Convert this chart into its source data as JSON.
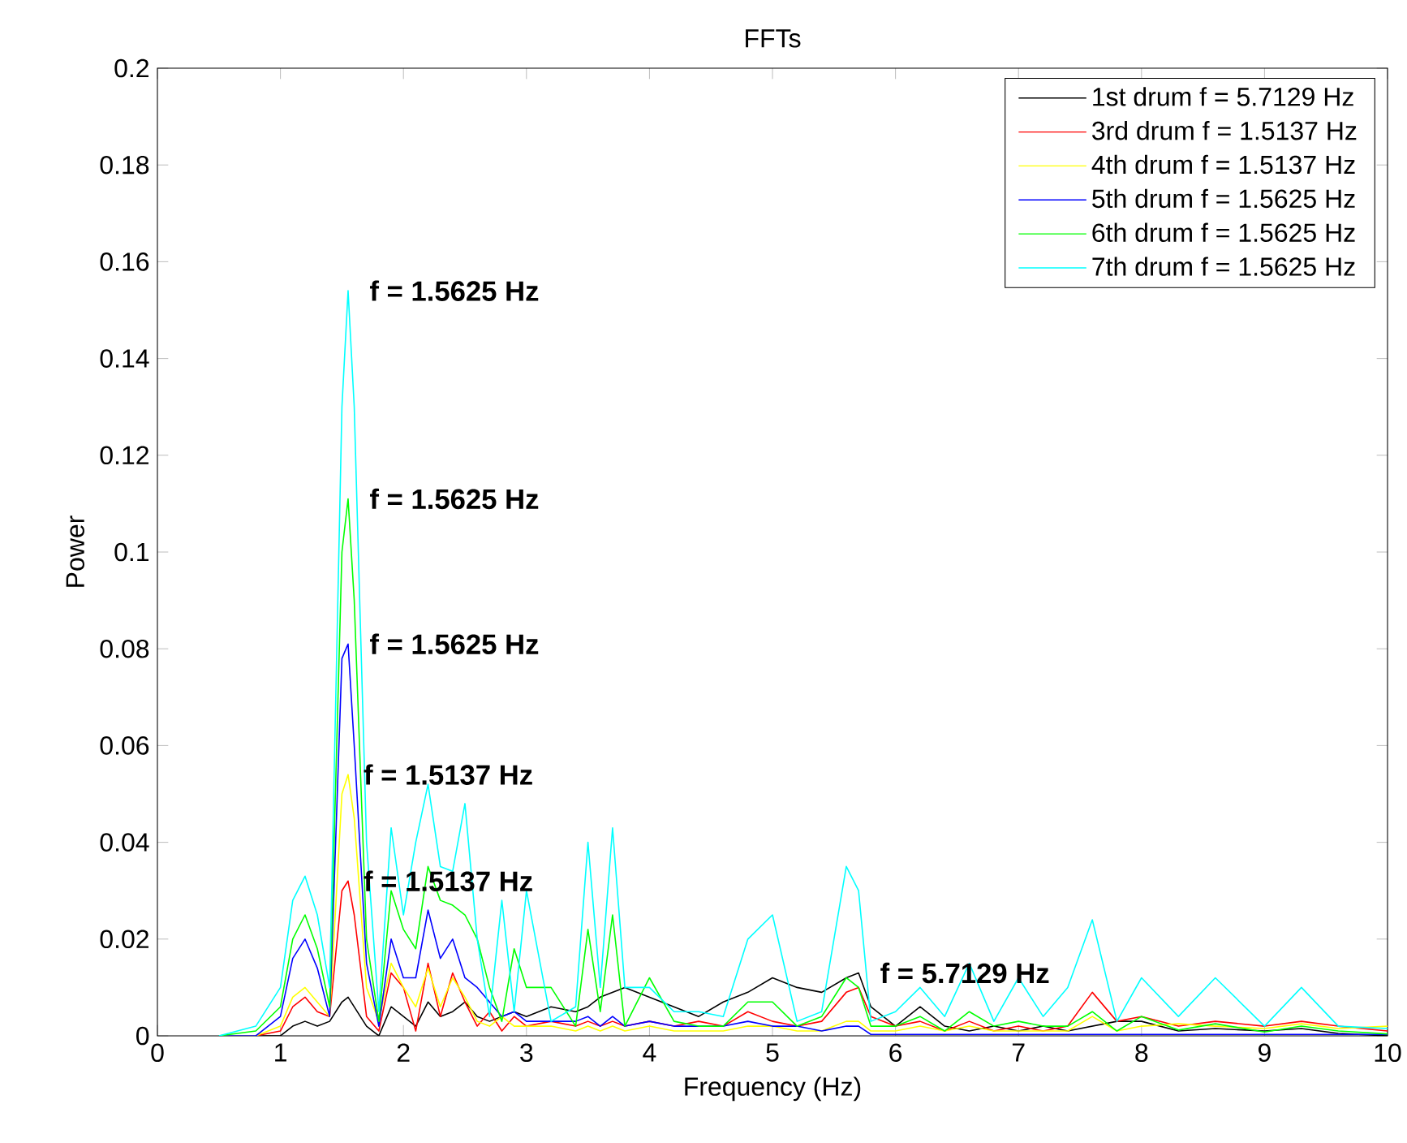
{
  "chart_data": {
    "type": "line",
    "title": "FFTs",
    "xlabel": "Frequency (Hz)",
    "ylabel": "Power",
    "xlim": [
      0,
      10
    ],
    "ylim": [
      0,
      0.2
    ],
    "xticks": [
      0,
      1,
      2,
      3,
      4,
      5,
      6,
      7,
      8,
      9,
      10
    ],
    "yticks": [
      0,
      0.02,
      0.04,
      0.06,
      0.08,
      0.1,
      0.12,
      0.14,
      0.16,
      0.18,
      0.2
    ],
    "grid": false,
    "legend": "top right",
    "marker": "none",
    "line_style": "solid",
    "x": [
      0.5,
      0.8,
      1.0,
      1.1,
      1.2,
      1.3,
      1.4,
      1.5,
      1.55,
      1.6,
      1.7,
      1.8,
      1.9,
      2.0,
      2.1,
      2.2,
      2.3,
      2.4,
      2.5,
      2.6,
      2.7,
      2.8,
      2.9,
      3.0,
      3.2,
      3.4,
      3.5,
      3.6,
      3.7,
      3.8,
      4.0,
      4.2,
      4.4,
      4.6,
      4.8,
      5.0,
      5.2,
      5.4,
      5.6,
      5.7,
      5.8,
      6.0,
      6.2,
      6.4,
      6.6,
      6.8,
      7.0,
      7.2,
      7.4,
      7.6,
      7.8,
      8.0,
      8.3,
      8.6,
      9.0,
      9.3,
      9.6,
      10
    ],
    "series": [
      {
        "name": "1st drum f = 5.7129 Hz",
        "color": "#000000",
        "values": [
          0,
          0,
          0,
          0.002,
          0.003,
          0.002,
          0.003,
          0.007,
          0.008,
          0.006,
          0.002,
          0,
          0.006,
          0.004,
          0.002,
          0.007,
          0.004,
          0.005,
          0.007,
          0.004,
          0.003,
          0.004,
          0.005,
          0.004,
          0.006,
          0.005,
          0.006,
          0.008,
          0.009,
          0.01,
          0.008,
          0.006,
          0.004,
          0.007,
          0.009,
          0.012,
          0.01,
          0.009,
          0.012,
          0.013,
          0.006,
          0.002,
          0.006,
          0.002,
          0.001,
          0.002,
          0.001,
          0.002,
          0.001,
          0.002,
          0.003,
          0.003,
          0.001,
          0.0015,
          0.001,
          0.0015,
          0.0005,
          0
        ]
      },
      {
        "name": "3rd drum f = 1.5137 Hz",
        "color": "#ff0000",
        "values": [
          0,
          0,
          0.001,
          0.006,
          0.008,
          0.005,
          0.004,
          0.03,
          0.032,
          0.025,
          0.004,
          0.001,
          0.013,
          0.01,
          0.001,
          0.015,
          0.004,
          0.013,
          0.007,
          0.002,
          0.005,
          0.001,
          0.004,
          0.002,
          0.003,
          0.002,
          0.003,
          0.002,
          0.003,
          0.002,
          0.003,
          0.002,
          0.003,
          0.002,
          0.005,
          0.003,
          0.002,
          0.003,
          0.009,
          0.01,
          0.004,
          0.002,
          0.003,
          0.001,
          0.003,
          0.001,
          0.002,
          0.001,
          0.002,
          0.009,
          0.003,
          0.004,
          0.002,
          0.003,
          0.002,
          0.003,
          0.002,
          0.001
        ]
      },
      {
        "name": "4th drum f = 1.5137 Hz",
        "color": "#ffff00",
        "values": [
          0,
          0,
          0.002,
          0.008,
          0.01,
          0.007,
          0.004,
          0.05,
          0.054,
          0.045,
          0.01,
          0.003,
          0.015,
          0.01,
          0.006,
          0.014,
          0.006,
          0.012,
          0.008,
          0.003,
          0.002,
          0.004,
          0.002,
          0.002,
          0.002,
          0.001,
          0.002,
          0.001,
          0.002,
          0.001,
          0.002,
          0.001,
          0.001,
          0.001,
          0.002,
          0.002,
          0.001,
          0.001,
          0.003,
          0.003,
          0.001,
          0.001,
          0.002,
          0.001,
          0.002,
          0.001,
          0.001,
          0.001,
          0.001,
          0.004,
          0.001,
          0.002,
          0.0025,
          0.002,
          0.0015,
          0.0025,
          0.0015,
          0.002
        ]
      },
      {
        "name": "5th drum f = 1.5625 Hz",
        "color": "#0000ff",
        "values": [
          0,
          0,
          0.004,
          0.016,
          0.02,
          0.014,
          0.004,
          0.078,
          0.081,
          0.06,
          0.015,
          0.002,
          0.02,
          0.012,
          0.012,
          0.026,
          0.016,
          0.02,
          0.012,
          0.01,
          0.007,
          0.004,
          0.005,
          0.003,
          0.003,
          0.003,
          0.004,
          0.002,
          0.004,
          0.002,
          0.003,
          0.002,
          0.002,
          0.002,
          0.003,
          0.002,
          0.002,
          0.001,
          0.002,
          0.002,
          0.0003,
          0.0003,
          0.0003,
          0.0003,
          0.0003,
          0.0003,
          0.0003,
          0.0003,
          0.0003,
          0.0003,
          0.0003,
          0.0003,
          0.0003,
          0.0003,
          0.0003,
          0.0003,
          0.0003,
          0.0003
        ]
      },
      {
        "name": "6th drum f = 1.5625 Hz",
        "color": "#00ff00",
        "values": [
          0,
          0.001,
          0.006,
          0.02,
          0.025,
          0.018,
          0.006,
          0.1,
          0.111,
          0.09,
          0.02,
          0.003,
          0.03,
          0.022,
          0.018,
          0.035,
          0.028,
          0.027,
          0.025,
          0.02,
          0.01,
          0.003,
          0.018,
          0.01,
          0.01,
          0.002,
          0.022,
          0.005,
          0.025,
          0.002,
          0.012,
          0.003,
          0.002,
          0.002,
          0.007,
          0.007,
          0.002,
          0.004,
          0.012,
          0.01,
          0.002,
          0.002,
          0.004,
          0.001,
          0.005,
          0.002,
          0.003,
          0.002,
          0.002,
          0.005,
          0.001,
          0.004,
          0.0012,
          0.0025,
          0.0008,
          0.002,
          0.001,
          0.0004
        ]
      },
      {
        "name": "7th drum f = 1.5625 Hz",
        "color": "#00ffff",
        "values": [
          0,
          0.002,
          0.01,
          0.028,
          0.033,
          0.025,
          0.01,
          0.13,
          0.154,
          0.13,
          0.04,
          0.005,
          0.043,
          0.025,
          0.04,
          0.052,
          0.035,
          0.034,
          0.048,
          0.02,
          0.004,
          0.028,
          0.005,
          0.03,
          0.003,
          0.006,
          0.04,
          0.01,
          0.043,
          0.01,
          0.01,
          0.005,
          0.005,
          0.004,
          0.02,
          0.025,
          0.003,
          0.005,
          0.035,
          0.03,
          0.003,
          0.005,
          0.01,
          0.004,
          0.015,
          0.003,
          0.012,
          0.004,
          0.01,
          0.024,
          0.003,
          0.012,
          0.004,
          0.012,
          0.002,
          0.01,
          0.002,
          0.0015
        ]
      }
    ],
    "annotations": [
      {
        "text": "f = 1.5625 Hz",
        "x": 1.5625,
        "y": 0.154
      },
      {
        "text": "f = 1.5625 Hz",
        "x": 1.5625,
        "y": 0.111
      },
      {
        "text": "f = 1.5625 Hz",
        "x": 1.5625,
        "y": 0.081
      },
      {
        "text": "f = 1.5137 Hz",
        "x": 1.5137,
        "y": 0.054
      },
      {
        "text": "f = 1.5137 Hz",
        "x": 1.5137,
        "y": 0.032
      },
      {
        "text": "f = 5.7129 Hz",
        "x": 5.7129,
        "y": 0.013
      }
    ]
  }
}
